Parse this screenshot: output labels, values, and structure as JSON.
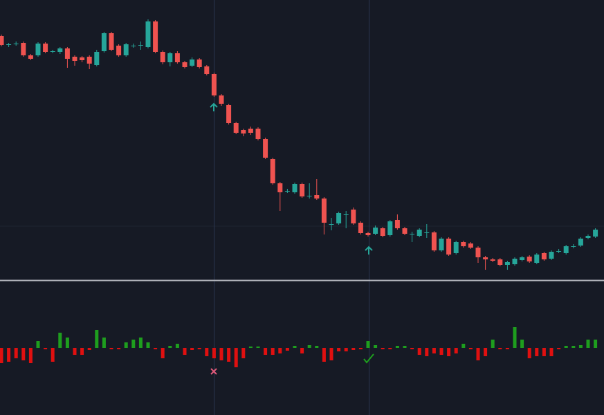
{
  "chart_data": [
    {
      "type": "candlestick",
      "up_color": "#26a69a",
      "down_color": "#ef5350",
      "ylim": [
        0,
        405
      ],
      "open": [
        353,
        340,
        342,
        343,
        325,
        325,
        342,
        330,
        330,
        335,
        323,
        322,
        323,
        311,
        331,
        357,
        339,
        325,
        339,
        340,
        337,
        374,
        330,
        315,
        328,
        315,
        310,
        319,
        309,
        298,
        267,
        253,
        227,
        217,
        219,
        219,
        204,
        175,
        140,
        129,
        127,
        139,
        122,
        123,
        118,
        81,
        82,
        95,
        102,
        83,
        68,
        67,
        75,
        65,
        87,
        75,
        67,
        64,
        69,
        69,
        43,
        60,
        39,
        55,
        53,
        47,
        33,
        30,
        30,
        22,
        23,
        29,
        34,
        25,
        39,
        31,
        42,
        39,
        49,
        50,
        61,
        63
      ],
      "high": [
        355,
        343,
        345,
        345,
        327,
        344,
        344,
        333,
        337,
        337,
        325,
        324,
        325,
        333,
        359,
        359,
        341,
        343,
        342,
        345,
        377,
        376,
        332,
        330,
        331,
        317,
        322,
        321,
        311,
        300,
        269,
        255,
        229,
        219,
        222,
        221,
        206,
        177,
        142,
        132,
        141,
        141,
        140,
        146,
        120,
        90,
        99,
        100,
        105,
        85,
        70,
        79,
        77,
        87,
        95,
        77,
        70,
        75,
        81,
        71,
        62,
        62,
        57,
        57,
        55,
        49,
        35,
        32,
        32,
        28,
        33,
        35,
        36,
        39,
        41,
        43,
        45,
        51,
        52,
        62,
        66,
        75
      ],
      "low": [
        338,
        337,
        339,
        323,
        318,
        323,
        328,
        328,
        327,
        307,
        310,
        315,
        305,
        309,
        329,
        331,
        323,
        323,
        336,
        333,
        335,
        328,
        312,
        309,
        313,
        306,
        308,
        306,
        296,
        265,
        252,
        225,
        211,
        208,
        210,
        202,
        175,
        138,
        100,
        126,
        125,
        119,
        118,
        116,
        66,
        72,
        80,
        75,
        80,
        66,
        63,
        65,
        62,
        63,
        73,
        65,
        55,
        62,
        61,
        41,
        41,
        35,
        37,
        47,
        45,
        25,
        15,
        26,
        20,
        15,
        21,
        27,
        25,
        23,
        28,
        29,
        39,
        37,
        46,
        48,
        59,
        61
      ],
      "close": [
        340,
        341,
        342,
        325,
        320,
        342,
        330,
        331,
        335,
        320,
        317,
        318,
        313,
        330,
        357,
        333,
        325,
        341,
        339,
        340,
        374,
        330,
        315,
        328,
        315,
        308,
        319,
        308,
        298,
        267,
        255,
        227,
        213,
        212,
        213,
        204,
        177,
        140,
        127,
        129,
        139,
        121,
        122,
        118,
        83,
        81,
        97,
        95,
        82,
        68,
        65,
        76,
        64,
        85,
        75,
        67,
        67,
        73,
        69,
        43,
        60,
        37,
        55,
        49,
        47,
        33,
        30,
        28,
        22,
        26,
        31,
        33,
        27,
        37,
        30,
        41,
        42,
        49,
        49,
        60,
        64,
        73
      ]
    },
    {
      "type": "bar",
      "up_color": "#1e9e1e",
      "down_color": "#e01010",
      "ylim": [
        -96,
        96
      ],
      "values": [
        -22,
        -20,
        -15,
        -18,
        -22,
        10,
        -2,
        -20,
        22,
        15,
        -10,
        -10,
        -3,
        26,
        15,
        -2,
        -2,
        8,
        12,
        15,
        8,
        -2,
        -15,
        3,
        6,
        -10,
        -3,
        -2,
        -12,
        -15,
        -18,
        -20,
        -28,
        -15,
        2,
        2,
        -10,
        -10,
        -8,
        -4,
        3,
        -8,
        4,
        3,
        -20,
        -18,
        -5,
        -5,
        -3,
        -2,
        10,
        4,
        -2,
        -2,
        3,
        3,
        -2,
        -10,
        -12,
        -8,
        -10,
        -12,
        -8,
        6,
        -2,
        -18,
        -12,
        12,
        -2,
        -2,
        30,
        12,
        -15,
        -12,
        -12,
        -12,
        -2,
        3,
        3,
        4,
        12,
        12
      ]
    }
  ]
}
